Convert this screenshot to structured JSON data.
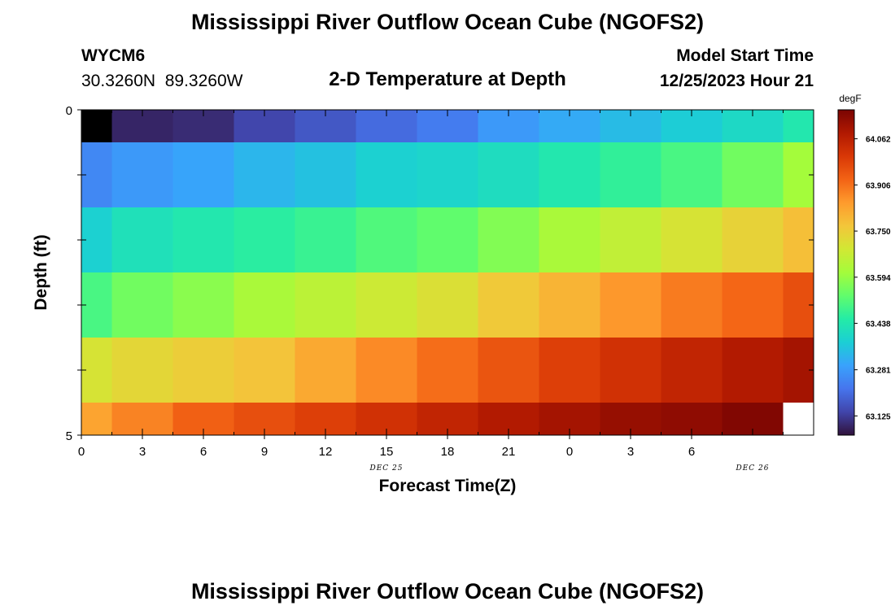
{
  "chart_data": {
    "type": "heatmap",
    "title": "Mississippi River Outflow Ocean Cube (NGOFS2)",
    "station_id": "WYCM6",
    "station_coords": "30.3260N  89.3260W",
    "subtitle": "2-D Temperature at Depth",
    "model_start_label": "Model Start Time",
    "model_start_value": "12/25/2023 Hour 21",
    "xlabel": "Forecast Time(Z)",
    "ylabel": "Depth (ft)",
    "x_ticks": [
      "0",
      "3",
      "6",
      "9",
      "12",
      "15",
      "18",
      "21",
      "0",
      "3",
      "6"
    ],
    "x_range_hours": [
      0,
      36
    ],
    "date_labels": [
      {
        "text": "DEC 25",
        "hour": 15
      },
      {
        "text": "DEC 26",
        "hour": 33
      }
    ],
    "y_ticks": [
      "0",
      "5"
    ],
    "ylim": [
      0,
      5
    ],
    "colorbar": {
      "unit": "degF",
      "range": [
        63.06,
        64.16
      ],
      "ticks": [
        "64.062",
        "63.906",
        "63.750",
        "63.594",
        "63.438",
        "63.281",
        "63.125"
      ],
      "tick_values": [
        64.062,
        63.906,
        63.75,
        63.594,
        63.438,
        63.281,
        63.125
      ],
      "colormap": [
        "#30123b",
        "#4145ab",
        "#4675ed",
        "#39a2fc",
        "#1bcfd4",
        "#24eca6",
        "#61fc6c",
        "#a4fc3b",
        "#d1e834",
        "#f3c63a",
        "#fe9b2d",
        "#f36315",
        "#d93806",
        "#b11901",
        "#7a0402"
      ]
    },
    "time_hours": [
      0,
      3,
      6,
      9,
      12,
      15,
      18,
      21,
      24,
      27,
      30,
      33,
      36
    ],
    "depth_bands_ft": [
      [
        0,
        0.5
      ],
      [
        0.5,
        1.5
      ],
      [
        1.5,
        2.5
      ],
      [
        2.5,
        3.5
      ],
      [
        3.5,
        4.5
      ],
      [
        4.5,
        5
      ]
    ],
    "values_degF": [
      [
        null,
        63.09,
        63.1,
        63.14,
        63.17,
        63.2,
        63.23,
        63.28,
        63.31,
        63.34,
        63.37,
        63.4,
        63.44
      ],
      [
        63.25,
        63.28,
        63.3,
        63.33,
        63.35,
        63.38,
        63.39,
        63.41,
        63.44,
        63.47,
        63.5,
        63.55,
        63.61
      ],
      [
        63.38,
        63.42,
        63.44,
        63.46,
        63.48,
        63.51,
        63.53,
        63.57,
        63.62,
        63.66,
        63.7,
        63.74,
        63.78
      ],
      [
        63.5,
        63.55,
        63.58,
        63.62,
        63.65,
        63.68,
        63.71,
        63.76,
        63.8,
        63.85,
        63.89,
        63.92,
        63.96
      ],
      [
        63.7,
        63.73,
        63.75,
        63.77,
        63.82,
        63.87,
        63.91,
        63.95,
        63.99,
        64.02,
        64.05,
        64.08,
        64.1
      ],
      [
        63.83,
        63.88,
        63.93,
        63.96,
        63.99,
        64.02,
        64.05,
        64.08,
        64.1,
        64.12,
        64.13,
        64.15,
        null
      ]
    ]
  }
}
